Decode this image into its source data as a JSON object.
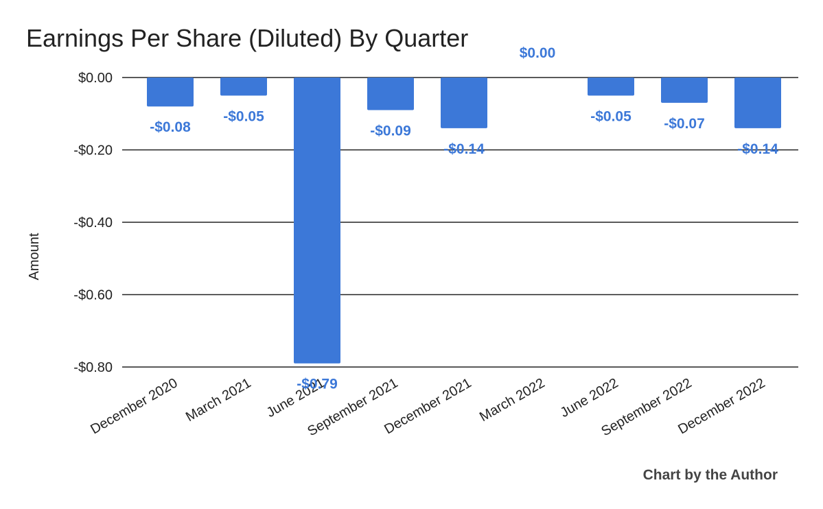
{
  "chart_data": {
    "type": "bar",
    "title": "Earnings Per Share (Diluted) By Quarter",
    "xlabel": "",
    "ylabel": "Amount",
    "ylim": [
      -0.8,
      0
    ],
    "yticks": [
      0,
      -0.2,
      -0.4,
      -0.6,
      -0.8
    ],
    "ytick_labels": [
      "$0.00",
      "-$0.20",
      "-$0.40",
      "-$0.60",
      "-$0.80"
    ],
    "categories": [
      "December 2020",
      "March 2021",
      "June 2021",
      "September 2021",
      "December 2021",
      "March 2022",
      "June 2022",
      "September 2022",
      "December 2022"
    ],
    "values": [
      -0.08,
      -0.05,
      -0.79,
      -0.09,
      -0.14,
      0.0,
      -0.05,
      -0.07,
      -0.14
    ],
    "data_labels": [
      "-$0.08",
      "-$0.05",
      "-$0.79",
      "-$0.09",
      "-$0.14",
      "$0.00",
      "-$0.05",
      "-$0.07",
      "-$0.14"
    ],
    "bar_color": "#3c78d8",
    "label_color": "#3c78d8",
    "grid": true,
    "legend": "none"
  },
  "credit": "Chart by the Author"
}
